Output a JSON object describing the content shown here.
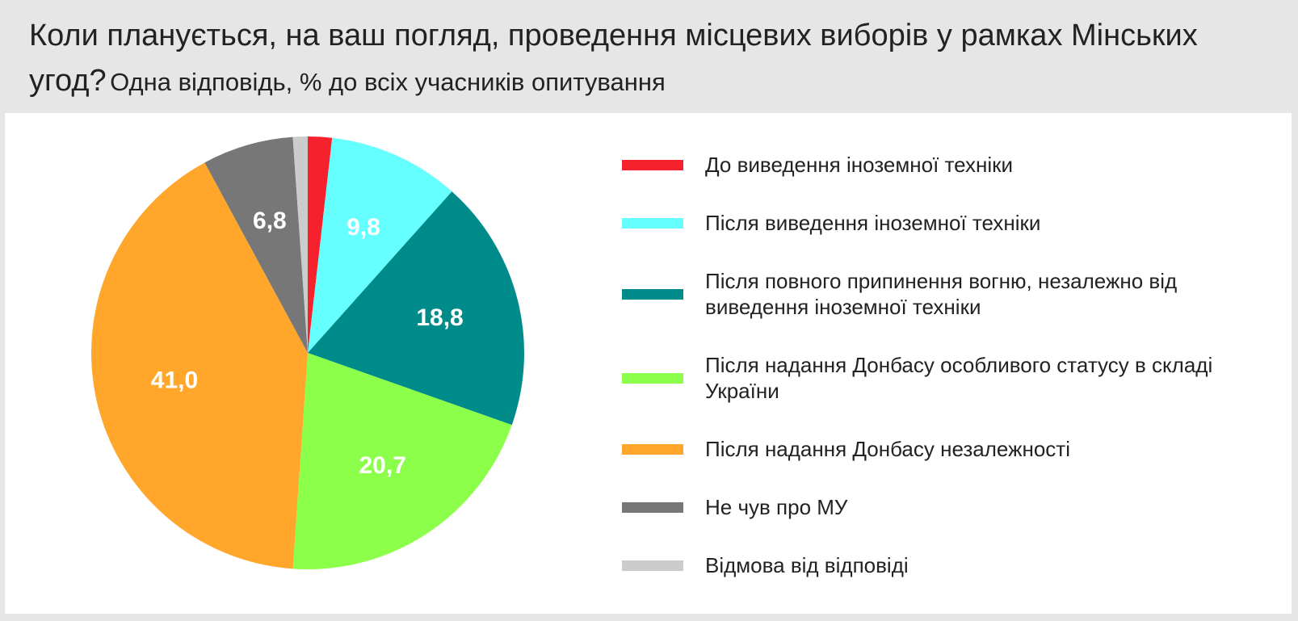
{
  "chart_data": {
    "type": "pie",
    "title": "Коли планується, на ваш погляд, проведення місцевих виборів у рамках Мінських угод?",
    "subtitle": "Одна відповідь, % до всіх учасників опитування",
    "categories": [
      "До виведення іноземної техніки",
      "Після виведення іноземної техніки",
      "Після повного припинення вогню, незалежно від виведення іноземної техніки",
      "Після надання Донбасу особливого статусу в складі України",
      "Після надання Донбасу незалежності",
      "Не чув про МУ",
      "Відмова від відповіді"
    ],
    "values": [
      1.8,
      9.8,
      18.8,
      20.7,
      41.0,
      6.8,
      1.1
    ],
    "value_labels": [
      null,
      "9,8",
      "18,8",
      "20,7",
      "41,0",
      "6,8",
      null
    ],
    "colors": [
      "#f5222d",
      "#66ffff",
      "#008b8b",
      "#8cff4a",
      "#ffa62b",
      "#777777",
      "#cccccc"
    ],
    "legend": "right"
  }
}
